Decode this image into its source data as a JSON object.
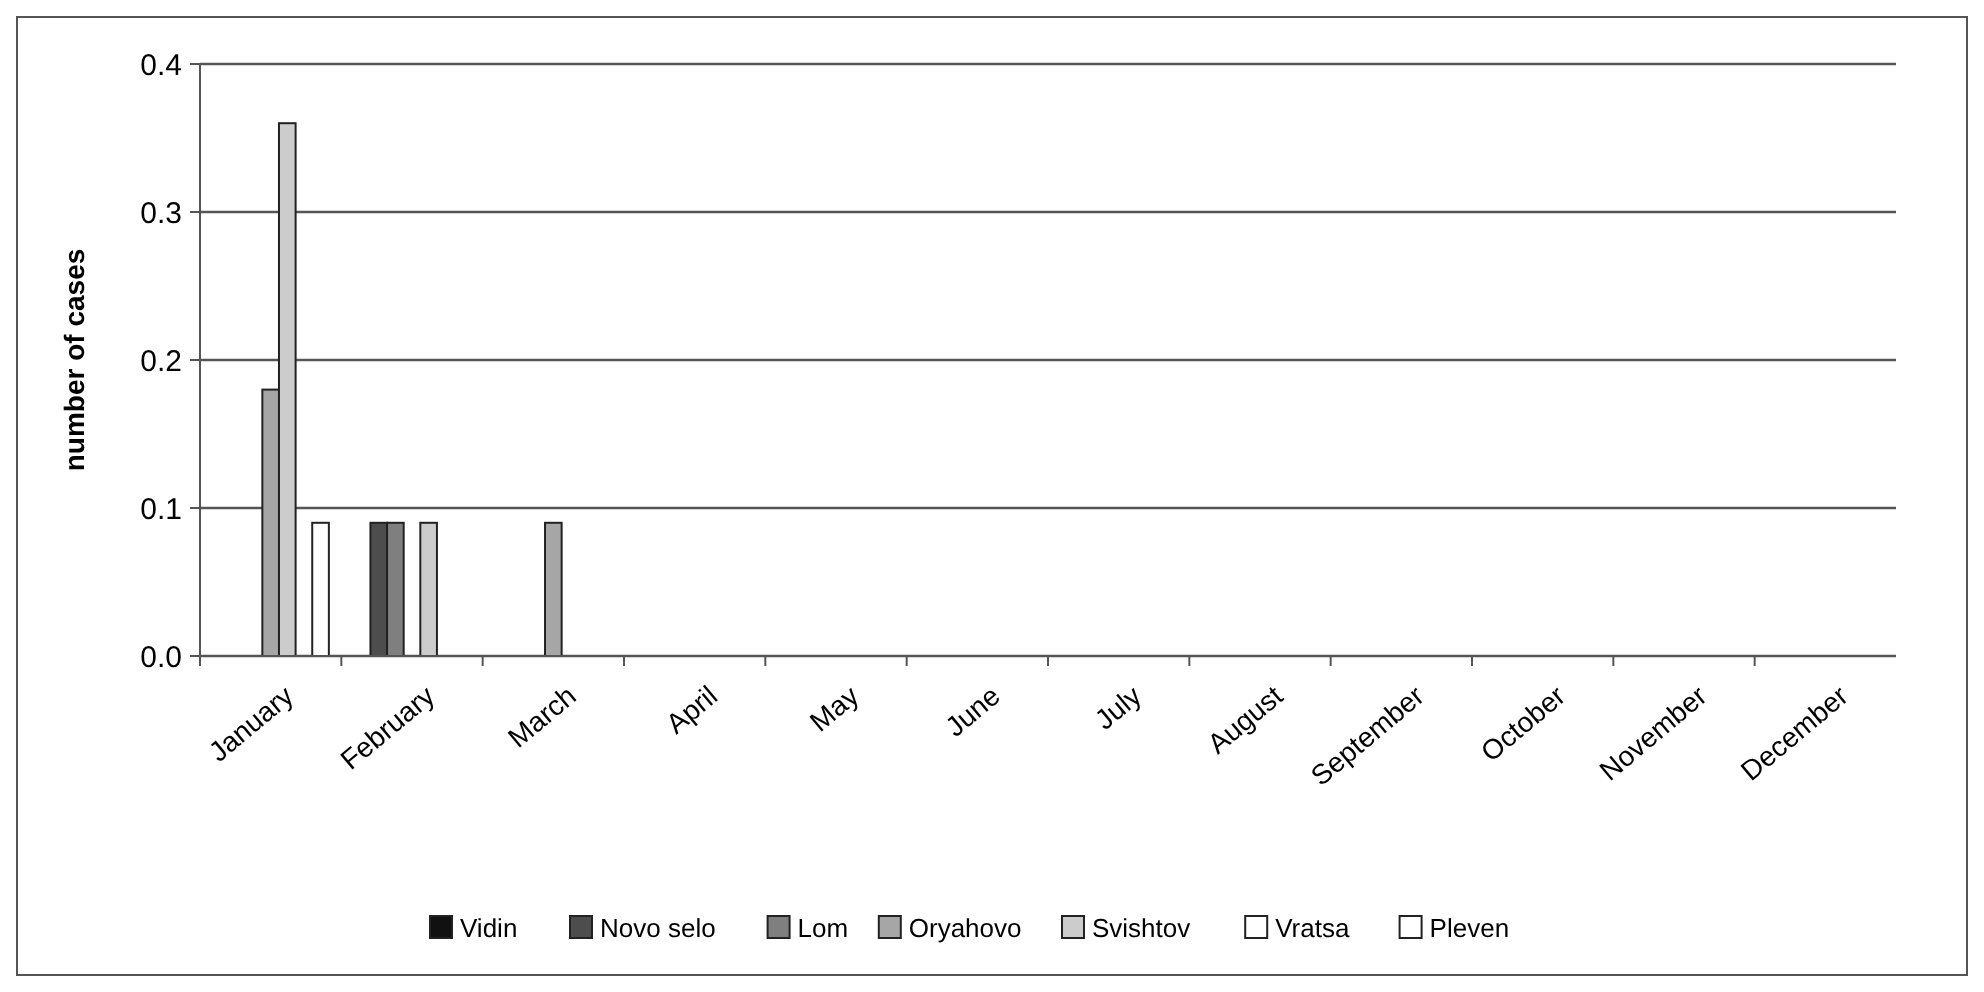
{
  "chart_data": {
    "type": "bar",
    "ylabel": "number of cases",
    "categories": [
      "January",
      "February",
      "March",
      "April",
      "May",
      "June",
      "July",
      "August",
      "September",
      "October",
      "November",
      "December"
    ],
    "series": [
      {
        "name": "Vidin",
        "color": "#111111",
        "values": [
          0,
          0,
          0,
          0,
          0,
          0,
          0,
          0,
          0,
          0,
          0,
          0
        ]
      },
      {
        "name": "Novo selo",
        "color": "#4d4d4d",
        "values": [
          0,
          0.09,
          0,
          0,
          0,
          0,
          0,
          0,
          0,
          0,
          0,
          0
        ]
      },
      {
        "name": "Lom",
        "color": "#7f7f7f",
        "values": [
          0,
          0.09,
          0,
          0,
          0,
          0,
          0,
          0,
          0,
          0,
          0,
          0
        ]
      },
      {
        "name": "Oryahovo",
        "color": "#a6a6a6",
        "values": [
          0.18,
          0,
          0.09,
          0,
          0,
          0,
          0,
          0,
          0,
          0,
          0,
          0
        ]
      },
      {
        "name": "Svishtov",
        "color": "#cccccc",
        "values": [
          0.36,
          0.09,
          0,
          0,
          0,
          0,
          0,
          0,
          0,
          0,
          0,
          0
        ]
      },
      {
        "name": "Vratsa",
        "color": "#ffffff",
        "values": [
          0,
          0,
          0,
          0,
          0,
          0,
          0,
          0,
          0,
          0,
          0,
          0
        ]
      },
      {
        "name": "Pleven",
        "color": "#ffffff",
        "values": [
          0.09,
          0,
          0,
          0,
          0,
          0,
          0,
          0,
          0,
          0,
          0,
          0
        ]
      }
    ],
    "ylim": [
      0,
      0.4
    ],
    "yticks": [
      {
        "value": 0,
        "label": "0.0"
      },
      {
        "value": 0.1,
        "label": "0.1"
      },
      {
        "value": 0.2,
        "label": "0.2"
      },
      {
        "value": 0.3,
        "label": "0.3"
      },
      {
        "value": 0.4,
        "label": "0.4"
      }
    ],
    "grid": "y",
    "legend": "bottom"
  }
}
